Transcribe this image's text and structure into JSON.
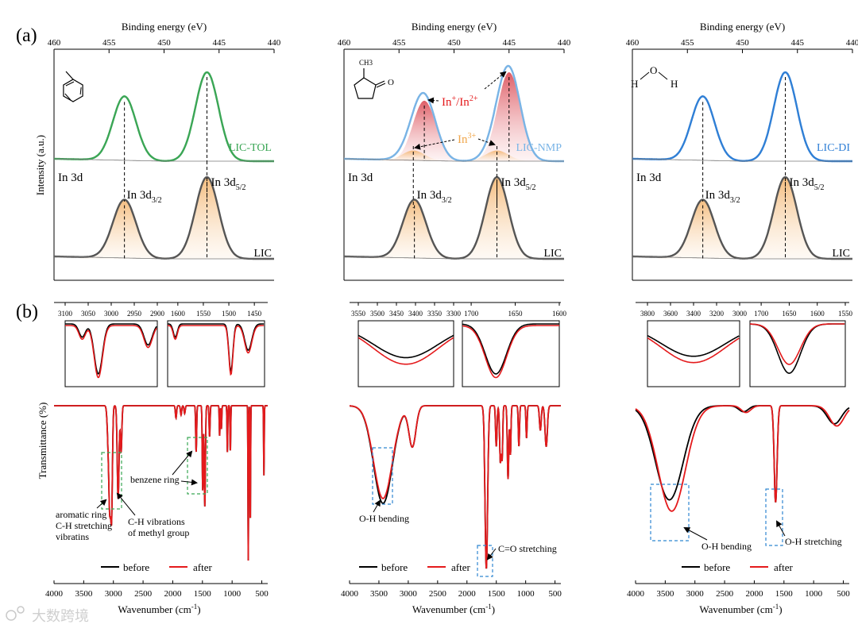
{
  "panel_labels": {
    "a": "(a)",
    "b": "(b)"
  },
  "watermark": "大数跨境",
  "colors": {
    "green": "#3aa655",
    "blue": "#2f7fd6",
    "lightblue": "#79b4e6",
    "red": "#e41a1c",
    "orange": "#f0a64a",
    "black": "#000000",
    "gray": "#9a9a9a"
  },
  "chart_data": [
    {
      "id": "xps-tol",
      "type": "line",
      "title": "",
      "xlabel": "Binding energy (eV)",
      "ylabel": "Intensity (a.u.)",
      "xlim": [
        460,
        440
      ],
      "xticks": [
        460,
        455,
        450,
        445,
        440
      ],
      "molecule": "toluene",
      "upper": {
        "label": "LIC-TOL",
        "color": "#3aa655",
        "fill": "none",
        "peaks": [
          453.6,
          446.1
        ],
        "heights": [
          0.72,
          1.0
        ]
      },
      "lower": {
        "label": "LIC",
        "fill": "orange",
        "peaks": [
          453.6,
          446.1
        ],
        "heights": [
          0.7,
          0.98
        ]
      },
      "annotations": {
        "in3d": "In 3d",
        "d32": "In 3d",
        "d32_sub": "3/2",
        "d52": "In 3d",
        "d52_sub": "5/2"
      }
    },
    {
      "id": "xps-nmp",
      "type": "line",
      "title": "",
      "xlabel": "Binding energy (eV)",
      "ylabel": "",
      "xlim": [
        460,
        440
      ],
      "xticks": [
        460,
        455,
        450,
        445,
        440
      ],
      "molecule": "NMP",
      "molecule_label": "CH3",
      "upper": {
        "label": "LIC-NMP",
        "color": "#79b4e6",
        "fill": "red-orange",
        "peaks": [
          452.7,
          445.0
        ],
        "heights": [
          0.68,
          1.0
        ],
        "shoulder_peaks": [
          453.7,
          446.1
        ]
      },
      "lower": {
        "label": "LIC",
        "fill": "orange",
        "peaks": [
          453.6,
          446.1
        ],
        "heights": [
          0.7,
          0.98
        ]
      },
      "annotations": {
        "in3d": "In 3d",
        "d32": "In 3d",
        "d32_sub": "3/2",
        "d52": "In 3d",
        "d52_sub": "5/2",
        "in12": "In",
        "in12_sup1": "+",
        "in12_mid": "/In",
        "in12_sup2": "2+",
        "in3": "In",
        "in3_sup": "3+"
      }
    },
    {
      "id": "xps-di",
      "type": "line",
      "title": "",
      "xlabel": "Binding energy (eV)",
      "ylabel": "",
      "xlim": [
        460,
        440
      ],
      "xticks": [
        460,
        455,
        450,
        445,
        440
      ],
      "molecule": "water",
      "molecule_atoms": [
        "H",
        "O",
        "H"
      ],
      "upper": {
        "label": "LIC-DI",
        "color": "#2f7fd6",
        "fill": "none",
        "peaks": [
          453.6,
          446.1
        ],
        "heights": [
          0.72,
          1.0
        ]
      },
      "lower": {
        "label": "LIC",
        "fill": "orange",
        "peaks": [
          453.6,
          446.1
        ],
        "heights": [
          0.7,
          0.98
        ]
      },
      "annotations": {
        "in3d": "In 3d",
        "d32": "In 3d",
        "d32_sub": "3/2",
        "d52": "In 3d",
        "d52_sub": "5/2"
      }
    },
    {
      "id": "ftir-tol",
      "type": "line",
      "xlabel": "Wavenumber (cm",
      "xlabel_sup": "-1",
      "xlabel_end": ")",
      "ylabel": "Transmittance (%)",
      "xlim": [
        4000,
        400
      ],
      "xticks": [
        4000,
        3500,
        3000,
        2500,
        2000,
        1500,
        1000,
        500
      ],
      "legend": [
        "before",
        "after"
      ],
      "bands": [
        [
          3085,
          18,
          0.25
        ],
        [
          3060,
          14,
          0.55
        ],
        [
          3030,
          14,
          0.7
        ],
        [
          2920,
          15,
          0.6
        ],
        [
          2870,
          12,
          0.3
        ],
        [
          1945,
          10,
          0.08
        ],
        [
          1860,
          10,
          0.06
        ],
        [
          1800,
          10,
          0.05
        ],
        [
          1605,
          8,
          0.3
        ],
        [
          1495,
          8,
          0.55
        ],
        [
          1460,
          10,
          0.65
        ],
        [
          1380,
          8,
          0.2
        ],
        [
          1210,
          6,
          0.2
        ],
        [
          1180,
          6,
          0.15
        ],
        [
          1080,
          6,
          0.3
        ],
        [
          1030,
          6,
          0.3
        ],
        [
          728,
          5,
          1.0
        ],
        [
          694,
          5,
          0.78
        ],
        [
          464,
          5,
          0.45
        ]
      ],
      "insets": [
        {
          "xlim": [
            3100,
            2900
          ],
          "ticks": [
            3100,
            3050,
            3000,
            2950,
            2900
          ],
          "dips": [
            [
              3028,
              9,
              0.95
            ],
            [
              3063,
              7,
              0.25
            ],
            [
              2920,
              9,
              0.4
            ]
          ]
        },
        {
          "xlim": [
            1620,
            1430
          ],
          "ticks": [
            1600,
            1550,
            1500,
            1450
          ],
          "dips": [
            [
              1605,
              4,
              0.25
            ],
            [
              1496,
              4,
              0.9
            ],
            [
              1462,
              7,
              0.5
            ]
          ]
        }
      ],
      "annotations": {
        "aromatic": [
          "aromatic ring",
          "C-H stretching",
          "vibratins"
        ],
        "methyl": [
          "C-H vibrations",
          "of methyl group"
        ],
        "benzene": "benzene ring"
      }
    },
    {
      "id": "ftir-nmp",
      "type": "line",
      "xlabel": "Wavenumber (cm",
      "xlabel_sup": "-1",
      "xlabel_end": ")",
      "ylabel": "",
      "xlim": [
        4000,
        400
      ],
      "xticks": [
        4000,
        3500,
        3000,
        2500,
        2000,
        1500,
        1000,
        500
      ],
      "legend": [
        "before",
        "after"
      ],
      "bands": [
        [
          3430,
          160,
          0.6
        ],
        [
          2930,
          60,
          0.25
        ],
        [
          1670,
          22,
          1.0
        ],
        [
          1500,
          12,
          0.25
        ],
        [
          1430,
          14,
          0.35
        ],
        [
          1400,
          10,
          0.3
        ],
        [
          1300,
          12,
          0.45
        ],
        [
          1260,
          10,
          0.3
        ],
        [
          1115,
          10,
          0.25
        ],
        [
          985,
          10,
          0.2
        ],
        [
          750,
          15,
          0.15
        ],
        [
          650,
          20,
          0.25
        ]
      ],
      "insets": [
        {
          "xlim": [
            3550,
            3300
          ],
          "ticks": [
            3550,
            3500,
            3450,
            3400,
            3350,
            3300
          ],
          "dips": [
            [
              3425,
              85,
              0.75
            ]
          ],
          "after_deeper": true
        },
        {
          "xlim": [
            1710,
            1600
          ],
          "ticks": [
            1700,
            1650,
            1600
          ],
          "dips": [
            [
              1672,
              12,
              0.95
            ]
          ]
        }
      ],
      "annotations": {
        "oh_bending": "O-H bending",
        "co_stretching": "C=O stretching"
      }
    },
    {
      "id": "ftir-di",
      "type": "line",
      "xlabel": "Wavenumber (cm",
      "xlabel_sup": "-1",
      "xlabel_end": ")",
      "ylabel": "",
      "xlim": [
        4000,
        400
      ],
      "xticks": [
        4000,
        3500,
        3000,
        2500,
        2000,
        1500,
        1000,
        500
      ],
      "legend": [
        "before",
        "after"
      ],
      "bands": [
        [
          3430,
          230,
          0.78
        ],
        [
          2180,
          80,
          0.05
        ],
        [
          1640,
          25,
          0.8
        ],
        [
          650,
          120,
          0.15
        ]
      ],
      "insets": [
        {
          "xlim": [
            3800,
            3000
          ],
          "ticks": [
            3800,
            3600,
            3400,
            3200,
            3000
          ],
          "dips": [
            [
              3400,
              280,
              0.72
            ]
          ],
          "after_deeper": true
        },
        {
          "xlim": [
            1720,
            1550
          ],
          "ticks": [
            1700,
            1650,
            1600,
            1550
          ],
          "dips": [
            [
              1650,
              20,
              0.9
            ]
          ]
        }
      ],
      "annotations": {
        "oh_bending": "O-H bending",
        "oh_stretching": "O-H stretching"
      }
    }
  ]
}
